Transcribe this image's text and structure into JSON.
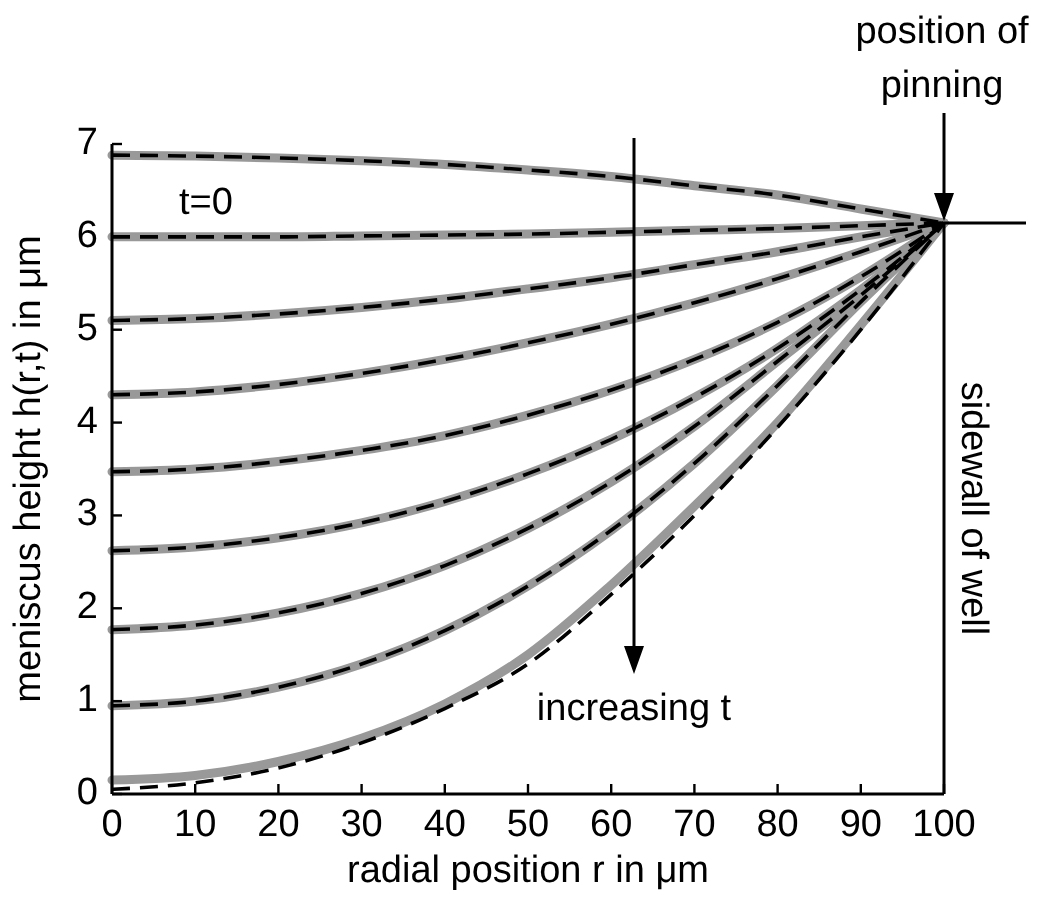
{
  "chart_data": {
    "type": "line",
    "xlabel": "radial position r in μm",
    "ylabel": "meniscus height h(r,t) in μm",
    "x": [
      0,
      10,
      20,
      30,
      40,
      50,
      60,
      70,
      80,
      90,
      100
    ],
    "xlim": [
      0,
      100
    ],
    "xticks": [
      0,
      10,
      20,
      30,
      40,
      50,
      60,
      70,
      80,
      90,
      100
    ],
    "ylim": [
      0,
      7
    ],
    "yticks": [
      0,
      1,
      2,
      3,
      4,
      5,
      6,
      7
    ],
    "series": [
      {
        "color": "#999999",
        "line_style": "solid",
        "values": [
          6.88,
          6.87,
          6.85,
          6.82,
          6.78,
          6.72,
          6.65,
          6.55,
          6.45,
          6.3,
          6.15
        ]
      },
      {
        "color": "#999999",
        "line_style": "solid",
        "values": [
          6.0,
          6.0,
          6.0,
          6.01,
          6.02,
          6.03,
          6.05,
          6.07,
          6.09,
          6.12,
          6.15
        ]
      },
      {
        "color": "#999999",
        "line_style": "solid",
        "values": [
          5.1,
          5.12,
          5.17,
          5.24,
          5.33,
          5.44,
          5.56,
          5.7,
          5.84,
          6.0,
          6.15
        ]
      },
      {
        "color": "#999999",
        "line_style": "solid",
        "values": [
          4.3,
          4.33,
          4.41,
          4.53,
          4.68,
          4.86,
          5.06,
          5.29,
          5.55,
          5.84,
          6.15
        ]
      },
      {
        "color": "#999999",
        "line_style": "solid",
        "values": [
          3.47,
          3.5,
          3.58,
          3.7,
          3.86,
          4.08,
          4.35,
          4.68,
          5.08,
          5.57,
          6.15
        ]
      },
      {
        "color": "#999999",
        "line_style": "solid",
        "values": [
          2.62,
          2.66,
          2.76,
          2.92,
          3.15,
          3.45,
          3.82,
          4.27,
          4.8,
          5.43,
          6.15
        ]
      },
      {
        "color": "#999999",
        "line_style": "solid",
        "values": [
          1.77,
          1.82,
          1.95,
          2.16,
          2.46,
          2.86,
          3.36,
          3.96,
          4.66,
          5.37,
          6.15
        ]
      },
      {
        "color": "#999999",
        "line_style": "solid",
        "values": [
          0.95,
          1.0,
          1.15,
          1.4,
          1.76,
          2.24,
          2.84,
          3.56,
          4.4,
          5.3,
          6.15
        ]
      },
      {
        "color": "#999999",
        "line_style": "solid",
        "values": [
          0.15,
          0.2,
          0.35,
          0.6,
          0.97,
          1.5,
          2.25,
          3.1,
          4.0,
          5.05,
          6.15
        ]
      },
      {
        "color": "#000000",
        "line_style": "dashed",
        "values": [
          6.88,
          6.87,
          6.85,
          6.82,
          6.78,
          6.72,
          6.65,
          6.55,
          6.45,
          6.3,
          6.15
        ]
      },
      {
        "color": "#000000",
        "line_style": "dashed",
        "values": [
          6.0,
          6.0,
          6.0,
          6.01,
          6.02,
          6.03,
          6.05,
          6.07,
          6.09,
          6.12,
          6.15
        ]
      },
      {
        "color": "#000000",
        "line_style": "dashed",
        "values": [
          5.1,
          5.12,
          5.17,
          5.24,
          5.33,
          5.44,
          5.56,
          5.7,
          5.84,
          6.0,
          6.15
        ]
      },
      {
        "color": "#000000",
        "line_style": "dashed",
        "values": [
          4.3,
          4.33,
          4.41,
          4.53,
          4.68,
          4.86,
          5.06,
          5.29,
          5.55,
          5.84,
          6.15
        ]
      },
      {
        "color": "#000000",
        "line_style": "dashed",
        "values": [
          3.47,
          3.5,
          3.58,
          3.7,
          3.86,
          4.08,
          4.35,
          4.68,
          5.08,
          5.57,
          6.15
        ]
      },
      {
        "color": "#000000",
        "line_style": "dashed",
        "values": [
          2.62,
          2.66,
          2.76,
          2.92,
          3.15,
          3.45,
          3.82,
          4.27,
          4.8,
          5.43,
          6.15
        ]
      },
      {
        "color": "#000000",
        "line_style": "dashed",
        "values": [
          1.77,
          1.82,
          1.95,
          2.16,
          2.46,
          2.86,
          3.36,
          3.96,
          4.66,
          5.37,
          6.15
        ]
      },
      {
        "color": "#000000",
        "line_style": "dashed",
        "values": [
          0.95,
          1.0,
          1.15,
          1.4,
          1.76,
          2.24,
          2.84,
          3.56,
          4.4,
          5.3,
          6.15
        ]
      },
      {
        "color": "#000000",
        "line_style": "dashed",
        "values": [
          0.05,
          0.12,
          0.28,
          0.55,
          0.92,
          1.4,
          2.15,
          3.0,
          3.95,
          5.0,
          6.15
        ]
      }
    ],
    "ref_lines": [
      {
        "axis": "x",
        "value": 100,
        "label": "sidewall of well"
      }
    ],
    "annotations": [
      "t=0",
      "position of pinning",
      "increasing t"
    ]
  }
}
